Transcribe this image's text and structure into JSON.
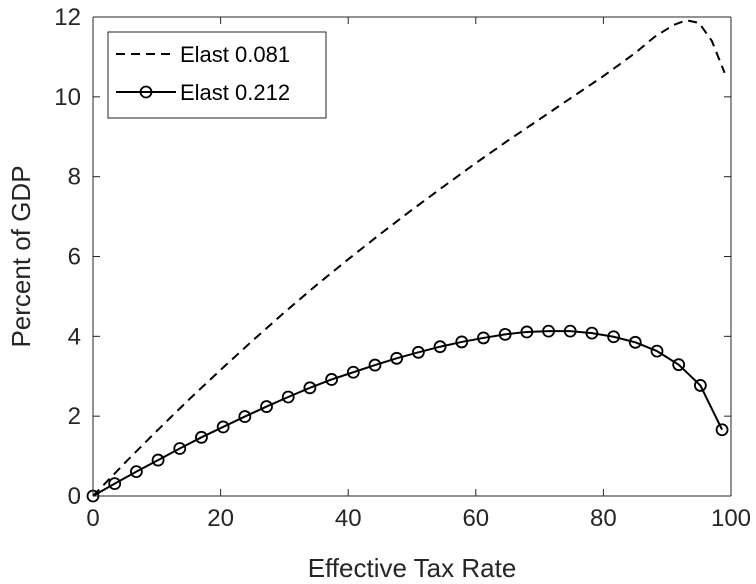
{
  "chart_data": {
    "type": "line",
    "xlabel": "Effective Tax Rate",
    "ylabel": "Percent of GDP",
    "xlim": [
      0,
      100
    ],
    "ylim": [
      0,
      12
    ],
    "xticks": [
      0,
      20,
      40,
      60,
      80,
      100
    ],
    "yticks": [
      0,
      2,
      4,
      6,
      8,
      10,
      12
    ],
    "grid": false,
    "legend_position": "top-left",
    "series": [
      {
        "name": "Elast 0.081",
        "style": "dashed",
        "color": "#000000",
        "x": [
          0,
          5,
          10,
          15,
          20,
          25,
          30,
          35,
          40,
          45,
          50,
          55,
          60,
          65,
          70,
          75,
          80,
          85,
          88,
          91,
          93,
          95,
          97,
          99
        ],
        "y": [
          0,
          0.83,
          1.63,
          2.41,
          3.16,
          3.89,
          4.6,
          5.28,
          5.93,
          6.56,
          7.17,
          7.76,
          8.34,
          8.9,
          9.44,
          9.98,
          10.52,
          11.1,
          11.5,
          11.8,
          11.92,
          11.85,
          11.4,
          10.6
        ]
      },
      {
        "name": "Elast 0.212",
        "style": "solid-circle",
        "color": "#000000",
        "x": [
          0,
          3.4,
          6.8,
          10.2,
          13.6,
          17.0,
          20.4,
          23.8,
          27.2,
          30.6,
          34.0,
          37.4,
          40.8,
          44.2,
          47.6,
          51.0,
          54.4,
          57.8,
          61.2,
          64.6,
          68.0,
          71.4,
          74.8,
          78.2,
          81.6,
          85.0,
          88.4,
          91.8,
          95.2,
          98.6
        ],
        "y": [
          0,
          0.31,
          0.61,
          0.9,
          1.19,
          1.47,
          1.73,
          1.99,
          2.24,
          2.48,
          2.71,
          2.92,
          3.1,
          3.28,
          3.45,
          3.6,
          3.74,
          3.86,
          3.96,
          4.05,
          4.11,
          4.13,
          4.13,
          4.08,
          3.99,
          3.85,
          3.63,
          3.29,
          2.77,
          1.66
        ]
      }
    ]
  }
}
